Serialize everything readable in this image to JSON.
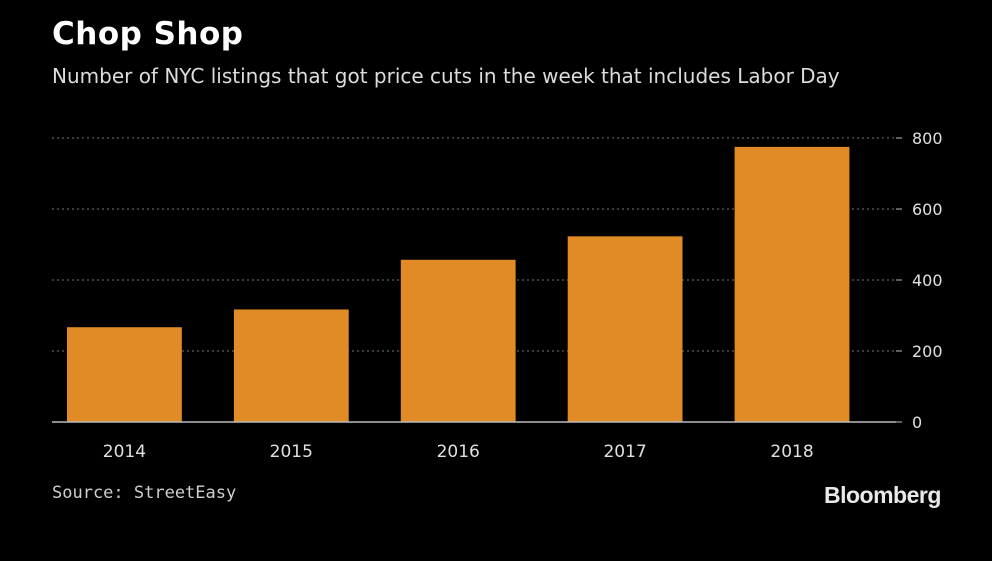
{
  "header": {
    "title": "Chop Shop",
    "subtitle": "Number of NYC listings that got price cuts in the week that includes Labor Day"
  },
  "footer": {
    "source": "Source: StreetEasy",
    "brand": "Bloomberg"
  },
  "colors": {
    "background": "#000000",
    "bar": "#e08b25",
    "grid": "#777777",
    "axis": "#bbbbbb",
    "text": "#ffffff"
  },
  "chart_data": {
    "type": "bar",
    "title": "Chop Shop",
    "subtitle": "Number of NYC listings that got price cuts in the week that includes Labor Day",
    "categories": [
      "2014",
      "2015",
      "2016",
      "2017",
      "2018"
    ],
    "values": [
      267,
      317,
      457,
      523,
      775
    ],
    "ylim": [
      0,
      800
    ],
    "yticks": [
      0,
      200,
      400,
      600,
      800
    ],
    "grid": true,
    "y_axis_side": "right"
  }
}
